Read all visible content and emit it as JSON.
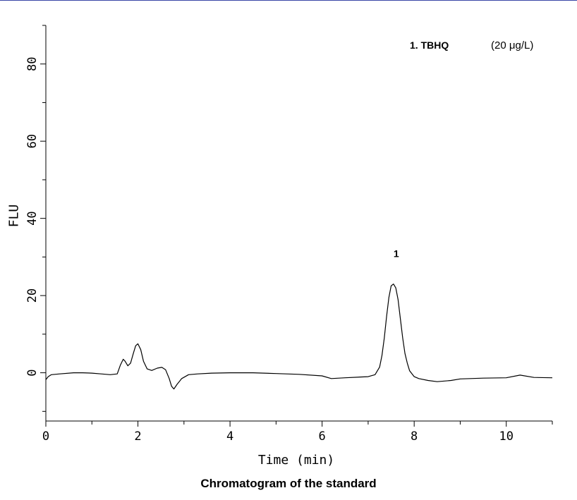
{
  "caption": "Chromatogram of the standard",
  "chart_data": {
    "type": "line",
    "title": "",
    "xlabel": "Time (min)",
    "ylabel": "FLU",
    "xlim": [
      0,
      11
    ],
    "ylim": [
      -12.5,
      90
    ],
    "x_major_ticks": [
      0,
      2,
      4,
      6,
      8,
      10
    ],
    "x_tick_labels": [
      "0",
      "2",
      "4",
      "6",
      "8",
      "10"
    ],
    "y_major_ticks": [
      0,
      20,
      40,
      60,
      80
    ],
    "y_tick_labels": [
      "0",
      "20",
      "40",
      "60",
      "80"
    ],
    "grid": false,
    "legend": {
      "placement": "top-right",
      "name": "1. TBHQ",
      "concentration": "(20 μg/L)"
    },
    "peaks": [
      {
        "label": "1",
        "x": 7.55,
        "y": 23.0
      }
    ],
    "line_color": "#000000",
    "series": [
      {
        "x": [
          0.0,
          0.05,
          0.12,
          0.3,
          0.6,
          0.8,
          1.0,
          1.2,
          1.4,
          1.55,
          1.62,
          1.68,
          1.72,
          1.78,
          1.84,
          1.9,
          1.95,
          2.0,
          2.06,
          2.12,
          2.2,
          2.3,
          2.42,
          2.52,
          2.6,
          2.68,
          2.73,
          2.78,
          2.85,
          2.95,
          3.1,
          3.3,
          3.6,
          4.0,
          4.5,
          5.0,
          5.5,
          6.0,
          6.2,
          6.5,
          7.0,
          7.15,
          7.25,
          7.3,
          7.35,
          7.4,
          7.45,
          7.5,
          7.55,
          7.6,
          7.65,
          7.7,
          7.75,
          7.8,
          7.85,
          7.9,
          8.0,
          8.1,
          8.3,
          8.5,
          8.8,
          9.0,
          9.5,
          10.0,
          10.3,
          10.6,
          11.0
        ],
        "y": [
          -1.8,
          -1.0,
          -0.5,
          -0.3,
          0.0,
          0.0,
          -0.1,
          -0.3,
          -0.5,
          -0.3,
          2.0,
          3.5,
          3.0,
          1.8,
          2.5,
          5.0,
          7.0,
          7.5,
          6.0,
          3.0,
          1.0,
          0.6,
          1.2,
          1.4,
          0.8,
          -1.5,
          -3.5,
          -4.2,
          -3.0,
          -1.5,
          -0.5,
          -0.3,
          -0.1,
          0.0,
          0.0,
          -0.2,
          -0.4,
          -0.8,
          -1.5,
          -1.3,
          -1.0,
          -0.5,
          1.5,
          4.5,
          9.0,
          14.5,
          19.5,
          22.5,
          23.0,
          22.0,
          19.0,
          14.0,
          9.0,
          5.0,
          2.5,
          0.5,
          -1.0,
          -1.5,
          -2.0,
          -2.3,
          -2.0,
          -1.6,
          -1.4,
          -1.3,
          -0.6,
          -1.2,
          -1.3
        ]
      }
    ]
  }
}
